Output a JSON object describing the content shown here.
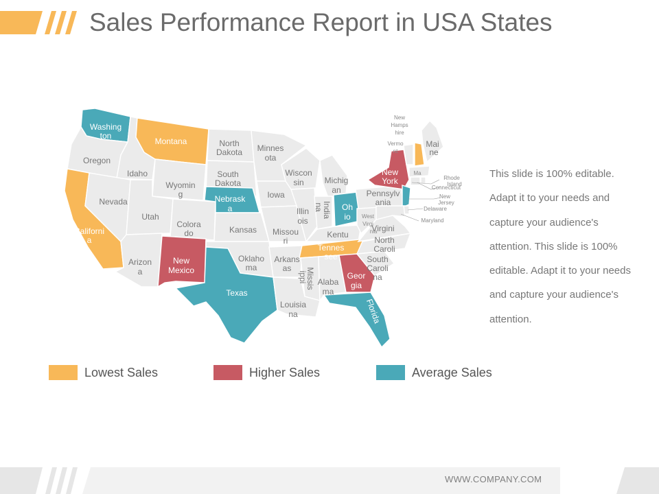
{
  "header": {
    "title": "Sales Performance Report in USA States"
  },
  "colors": {
    "lowest": "#f8b858",
    "higher": "#c75a63",
    "average": "#4aa9b8",
    "neutral": "#ebebeb"
  },
  "map": {
    "states": {
      "washington": {
        "label": "Washington",
        "category": "average"
      },
      "oregon": {
        "label": "Oregon",
        "category": "none"
      },
      "california": {
        "label": "California",
        "category": "lowest"
      },
      "idaho": {
        "label": "Idaho",
        "category": "none"
      },
      "nevada": {
        "label": "Nevada",
        "category": "none"
      },
      "montana": {
        "label": "Montana",
        "category": "lowest"
      },
      "wyoming": {
        "label": "Wyoming",
        "category": "none"
      },
      "utah": {
        "label": "Utah",
        "category": "none"
      },
      "arizona": {
        "label": "Arizona",
        "category": "none"
      },
      "colorado": {
        "label": "Colorado",
        "category": "none"
      },
      "new_mexico": {
        "label": "New Mexico",
        "category": "higher"
      },
      "north_dakota": {
        "label": "North Dakota",
        "category": "none"
      },
      "south_dakota": {
        "label": "South Dakota",
        "category": "none"
      },
      "nebraska": {
        "label": "Nebraska",
        "category": "average"
      },
      "kansas": {
        "label": "Kansas",
        "category": "none"
      },
      "oklahoma": {
        "label": "Oklahoma",
        "category": "none"
      },
      "texas": {
        "label": "Texas",
        "category": "average"
      },
      "minnesota": {
        "label": "Minnesota",
        "category": "none"
      },
      "iowa": {
        "label": "Iowa",
        "category": "none"
      },
      "missouri": {
        "label": "Missouri",
        "category": "none"
      },
      "arkansas": {
        "label": "Arkansas",
        "category": "none"
      },
      "louisiana": {
        "label": "Louisiana",
        "category": "none"
      },
      "wisconsin": {
        "label": "Wisconsin",
        "category": "none"
      },
      "illinois": {
        "label": "Illinois",
        "category": "none"
      },
      "michigan": {
        "label": "Michigan",
        "category": "none"
      },
      "indiana": {
        "label": "Indiana",
        "category": "none"
      },
      "ohio": {
        "label": "Ohio",
        "category": "average"
      },
      "kentucky": {
        "label": "Kentucky",
        "category": "none"
      },
      "tennessee": {
        "label": "Tennessee",
        "category": "lowest"
      },
      "mississippi": {
        "label": "Mississippi",
        "category": "none"
      },
      "alabama": {
        "label": "Alabama",
        "category": "none"
      },
      "georgia": {
        "label": "Georgia",
        "category": "higher"
      },
      "florida": {
        "label": "Florida",
        "category": "average"
      },
      "south_carolina": {
        "label": "South Carolina",
        "category": "none"
      },
      "north_carolina": {
        "label": "North Carolina",
        "category": "none"
      },
      "virginia": {
        "label": "Virginia",
        "category": "none"
      },
      "west_virginia": {
        "label": "West Virginia",
        "category": "none"
      },
      "pennsylvania": {
        "label": "Pennsylvania",
        "category": "none"
      },
      "new_york": {
        "label": "New York",
        "category": "higher"
      },
      "new_jersey": {
        "label": "New Jersey",
        "category": "average"
      },
      "vermont": {
        "label": "Vermont",
        "category": "none"
      },
      "new_hampshire": {
        "label": "New Hampshire",
        "category": "lowest"
      },
      "maine": {
        "label": "Maine",
        "category": "none"
      },
      "massachusetts": {
        "label": "Massachusetts",
        "category": "none"
      },
      "rhode_island": {
        "label": "Rhode Island",
        "category": "none"
      },
      "connecticut": {
        "label": "Connecticut",
        "category": "none"
      },
      "delaware": {
        "label": "Delaware",
        "category": "none"
      },
      "maryland": {
        "label": "Maryland",
        "category": "none"
      }
    }
  },
  "description": "This slide is 100% editable. Adapt it to your needs and capture your audience's attention. This slide is 100% editable. Adapt it to your needs and capture your audience's attention.",
  "legend": [
    {
      "label": "Lowest Sales",
      "category": "lowest"
    },
    {
      "label": "Higher Sales",
      "category": "higher"
    },
    {
      "label": "Average Sales",
      "category": "average"
    }
  ],
  "footer": {
    "url": "WWW.COMPANY.COM"
  }
}
